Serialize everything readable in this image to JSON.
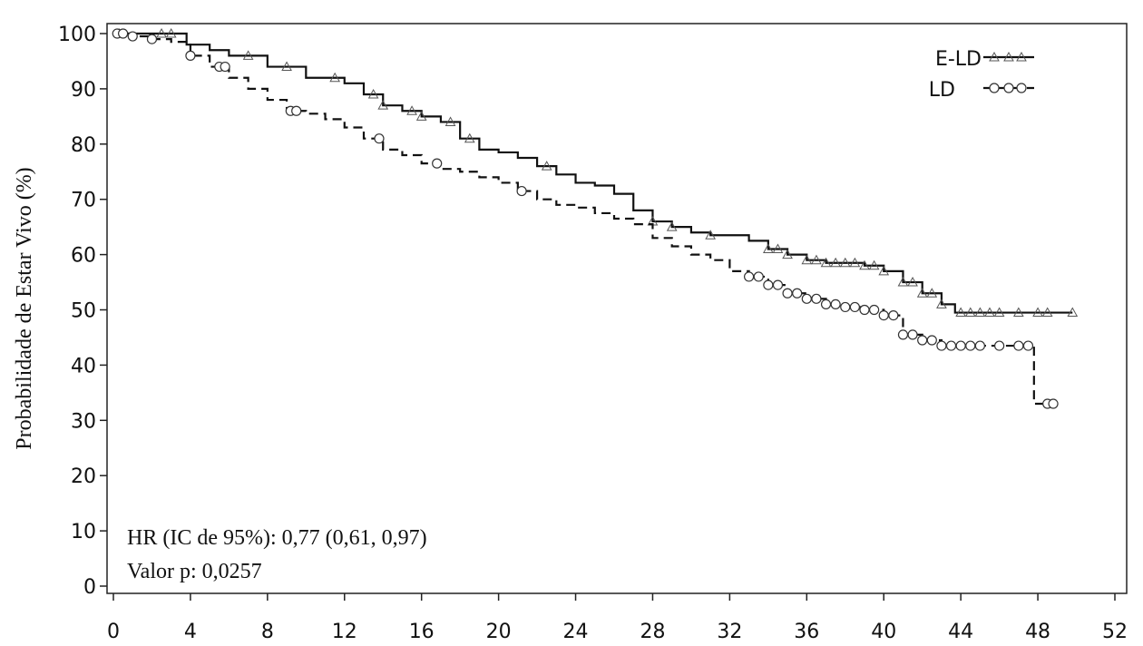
{
  "chart_data": {
    "type": "line",
    "title": "",
    "xlabel": "",
    "ylabel": "Probabilidade de Estar Vivo (%)",
    "xlim": [
      0,
      52
    ],
    "ylim": [
      0,
      100
    ],
    "xticks": [
      0,
      4,
      8,
      12,
      16,
      20,
      24,
      28,
      32,
      36,
      40,
      44,
      48,
      52
    ],
    "yticks": [
      0,
      10,
      20,
      30,
      40,
      50,
      60,
      70,
      80,
      90,
      100
    ],
    "grid": false,
    "legend_position": "top-right",
    "annotations": [
      "HR (IC de 95%): 0,77 (0,61, 0,97)",
      "Valor p: 0,0257"
    ],
    "series": [
      {
        "name": "E-LD",
        "color": "#111111",
        "line_style": "solid",
        "marker": "triangle",
        "x": [
          0,
          1,
          2,
          3,
          3.8,
          5,
          6,
          8,
          10,
          12,
          13,
          14,
          15,
          16,
          17,
          18,
          19,
          20,
          21,
          22,
          23,
          24,
          25,
          26,
          27,
          28,
          29,
          30,
          31,
          32,
          33,
          34,
          35,
          36,
          37,
          38,
          39,
          40,
          41,
          42,
          43,
          43.7,
          48,
          49.8
        ],
        "y": [
          100,
          100,
          100,
          100,
          98,
          97,
          96,
          94,
          92,
          91,
          89,
          87,
          86,
          85,
          84,
          81,
          79,
          78.5,
          77.5,
          76,
          74.5,
          73,
          72.5,
          71,
          68,
          66,
          65,
          64,
          63.5,
          63.5,
          62.5,
          61,
          60,
          59,
          58.5,
          58.5,
          58,
          57,
          55,
          53,
          51,
          49.5,
          49.5,
          49.5
        ],
        "censor_x": [
          0.3,
          2.5,
          3,
          7,
          9,
          11.5,
          13.5,
          14,
          15.5,
          16,
          17.5,
          18.5,
          22.5,
          28,
          29,
          31,
          34,
          34.5,
          35,
          36,
          36.5,
          37,
          37.5,
          38,
          38.5,
          39,
          39.5,
          40,
          41,
          41.5,
          42,
          42.5,
          43,
          44,
          44.5,
          45,
          45.5,
          46,
          47,
          48,
          48.5,
          49.8
        ]
      },
      {
        "name": "LD",
        "color": "#111111",
        "line_style": "dashed",
        "marker": "circle",
        "x": [
          0,
          1,
          2,
          3,
          4,
          5,
          6,
          7,
          8,
          9,
          10,
          11,
          12,
          13,
          14,
          15,
          16,
          17,
          18,
          19,
          20,
          21,
          22,
          23,
          24,
          25,
          26,
          27,
          28,
          29,
          30,
          31,
          32,
          33,
          34,
          35,
          36,
          37,
          38,
          39,
          40,
          41,
          42,
          43,
          47.6,
          47.8,
          48.8
        ],
        "y": [
          100,
          99.5,
          99,
          98.5,
          96,
          94,
          92,
          90,
          88,
          86,
          85.5,
          84.5,
          83,
          81,
          79,
          78,
          76.5,
          75.5,
          75,
          74,
          73,
          71.5,
          70,
          69,
          68.5,
          67.5,
          66.5,
          65.5,
          63,
          61.5,
          60,
          59,
          57,
          56,
          54.5,
          53,
          52,
          51,
          50.5,
          50,
          49,
          45.5,
          44.5,
          43.5,
          43.5,
          33,
          33
        ],
        "censor_x": [
          0.2,
          0.5,
          1,
          2,
          4,
          5.5,
          5.8,
          9.2,
          9.5,
          13.8,
          16.8,
          21.2,
          33,
          33.5,
          34,
          34.5,
          35,
          35.5,
          36,
          36.5,
          37,
          37.5,
          38,
          38.5,
          39,
          39.5,
          40,
          40.5,
          41,
          41.5,
          42,
          42.5,
          43,
          43.5,
          44,
          44.5,
          45,
          46,
          47,
          47.5,
          48.5,
          48.8
        ]
      }
    ]
  }
}
